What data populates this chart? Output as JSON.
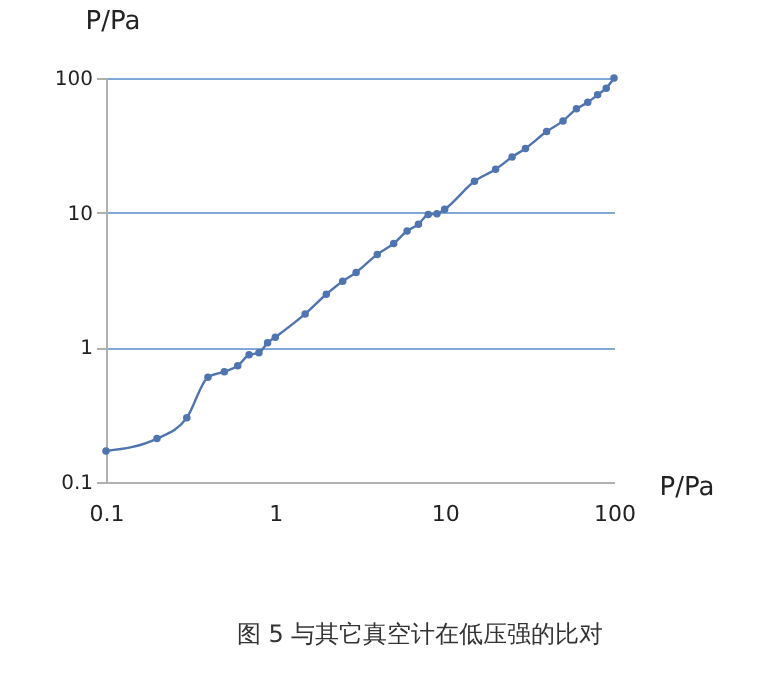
{
  "chart_data": {
    "type": "line",
    "xlabel": "P/Pa",
    "ylabel": "P/Pa",
    "annotations": [
      "图 5 与其它真空计在低压强的比对"
    ],
    "x": [
      0.1,
      0.2,
      0.3,
      0.4,
      0.5,
      0.6,
      0.7,
      0.8,
      0.9,
      1,
      1.5,
      2,
      2.5,
      3,
      4,
      5,
      6,
      7,
      8,
      9,
      10,
      15,
      20,
      25,
      30,
      40,
      50,
      60,
      70,
      80,
      90,
      100
    ],
    "series": [
      {
        "color": "#4f74b0",
        "values": [
          0.17,
          0.21,
          0.3,
          0.6,
          0.66,
          0.73,
          0.88,
          0.91,
          1.08,
          1.19,
          1.77,
          2.48,
          3.1,
          3.6,
          4.9,
          5.9,
          7.3,
          8.2,
          9.7,
          9.8,
          10.6,
          17.1,
          21,
          25.9,
          30,
          40,
          48,
          59,
          66,
          75,
          84,
          100
        ]
      }
    ],
    "log": "xy",
    "xlim": [
      0.1,
      100
    ],
    "ylim": [
      0.1,
      100
    ],
    "xticks": [
      0.1,
      1,
      10,
      100
    ],
    "yticks": [
      0.1,
      1,
      10,
      100
    ],
    "grid": "y",
    "marker": "circle",
    "line_style": "solid"
  }
}
